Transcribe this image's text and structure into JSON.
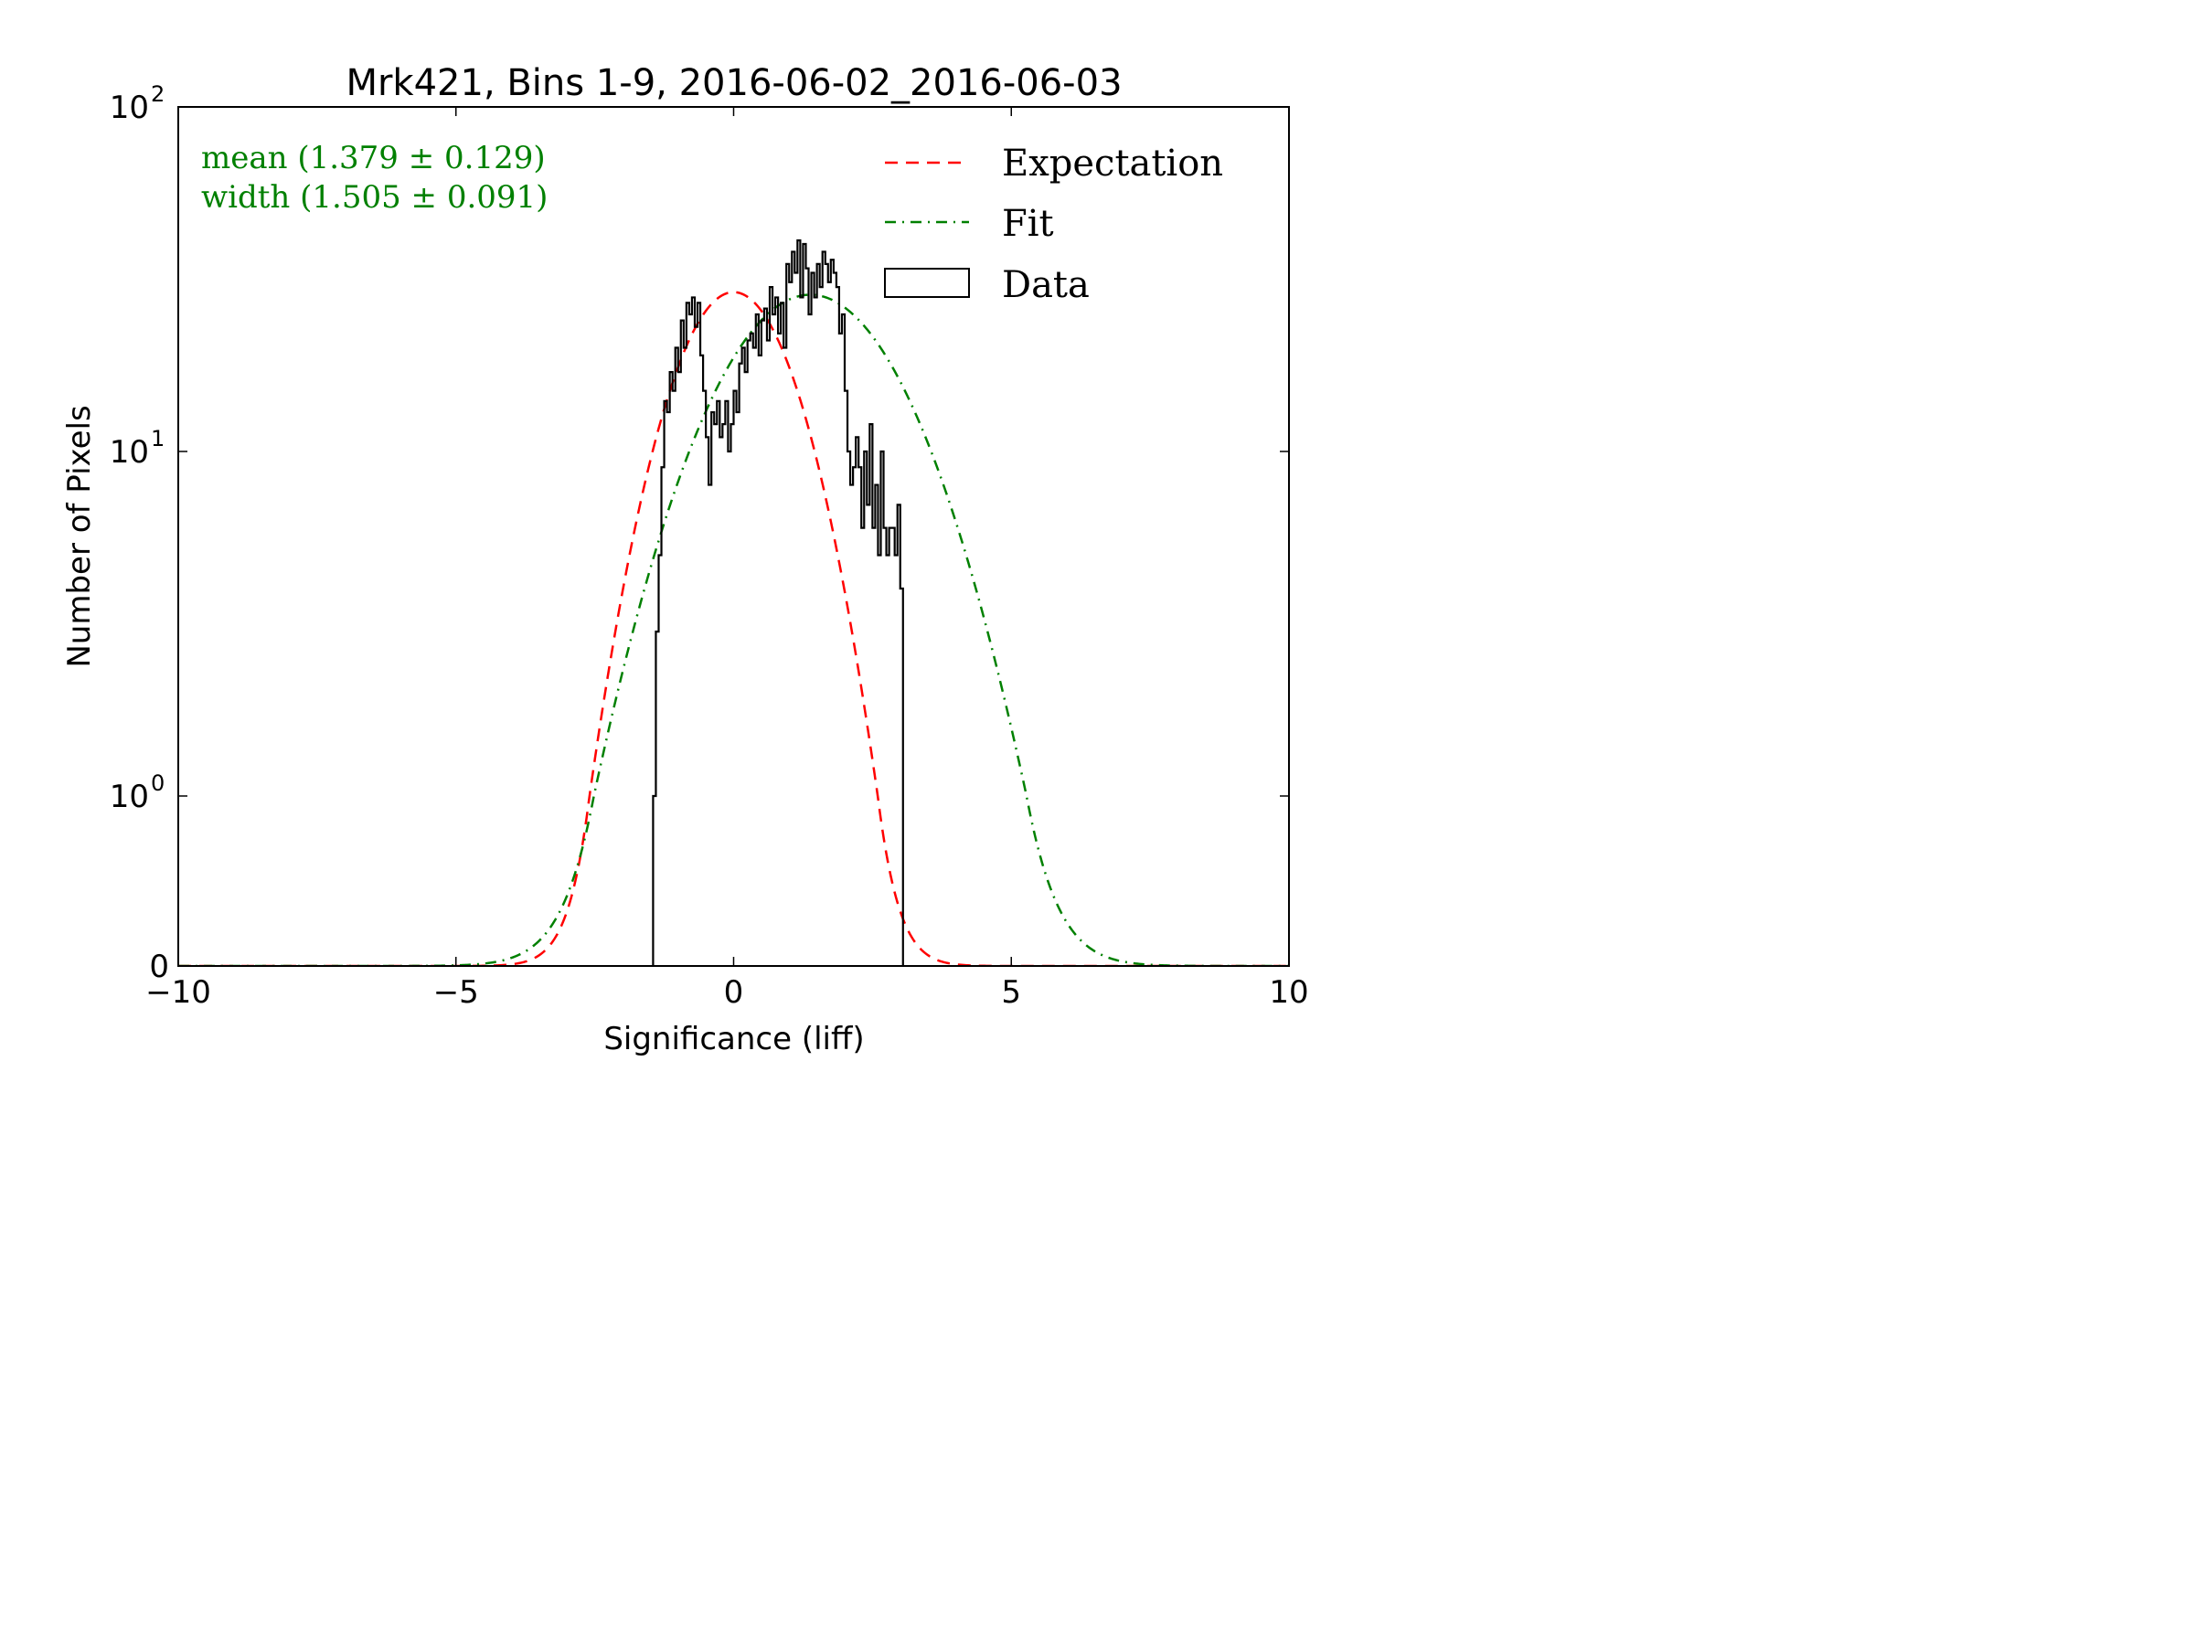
{
  "chart_data": {
    "type": "histogram",
    "title": "Mrk421, Bins 1-9, 2016-06-02_2016-06-03",
    "xlabel": "Significance (liff)",
    "ylabel": "Number of Pixels",
    "xlim": [
      -10,
      10
    ],
    "y_scale": "symlog",
    "x_ticks": [
      {
        "value": -10,
        "label": "−10"
      },
      {
        "value": -5,
        "label": "−5"
      },
      {
        "value": 0,
        "label": "0"
      },
      {
        "value": 5,
        "label": "5"
      },
      {
        "value": 10,
        "label": "10"
      }
    ],
    "y_ticks": [
      {
        "value": 0,
        "base": "0",
        "exp": ""
      },
      {
        "value": 1,
        "base": "10",
        "exp": "0"
      },
      {
        "value": 10,
        "base": "10",
        "exp": "1"
      },
      {
        "value": 100,
        "base": "10",
        "exp": "2"
      }
    ],
    "annotations": [
      {
        "text": "mean (1.379 ± 0.129)",
        "color": "#008000"
      },
      {
        "text": "width (1.505 ± 0.091)",
        "color": "#008000"
      }
    ],
    "legend": {
      "placement": "top-right",
      "entries": [
        {
          "label": "Expectation",
          "color": "#ff0000",
          "style": "dashed"
        },
        {
          "label": "Fit",
          "color": "#008000",
          "style": "dashdot"
        },
        {
          "label": "Data",
          "color": "#000000",
          "style": "patch"
        }
      ]
    },
    "series": [
      {
        "name": "Expectation",
        "kind": "gaussian",
        "mean": 0,
        "sigma": 1,
        "amplitude": 29,
        "color": "#ff0000"
      },
      {
        "name": "Fit",
        "kind": "gaussian",
        "mean": 1.379,
        "sigma": 1.505,
        "amplitude": 28.5,
        "color": "#008000"
      },
      {
        "name": "Data",
        "kind": "histogram",
        "color": "#000000",
        "bins": [
          [
            -1.45,
            1
          ],
          [
            -1.4,
            3
          ],
          [
            -1.35,
            5
          ],
          [
            -1.3,
            9
          ],
          [
            -1.25,
            14
          ],
          [
            -1.2,
            13
          ],
          [
            -1.15,
            17
          ],
          [
            -1.1,
            15
          ],
          [
            -1.05,
            20
          ],
          [
            -1.0,
            17
          ],
          [
            -0.95,
            24
          ],
          [
            -0.9,
            20
          ],
          [
            -0.85,
            27
          ],
          [
            -0.8,
            25
          ],
          [
            -0.75,
            28
          ],
          [
            -0.7,
            23
          ],
          [
            -0.65,
            27
          ],
          [
            -0.6,
            19
          ],
          [
            -0.55,
            15
          ],
          [
            -0.5,
            11
          ],
          [
            -0.45,
            8
          ],
          [
            -0.4,
            13
          ],
          [
            -0.35,
            12
          ],
          [
            -0.3,
            14
          ],
          [
            -0.25,
            11
          ],
          [
            -0.2,
            12
          ],
          [
            -0.15,
            14
          ],
          [
            -0.1,
            10
          ],
          [
            -0.05,
            12
          ],
          [
            0.0,
            15
          ],
          [
            0.05,
            13
          ],
          [
            0.1,
            18
          ],
          [
            0.15,
            20
          ],
          [
            0.2,
            17
          ],
          [
            0.25,
            21
          ],
          [
            0.3,
            22
          ],
          [
            0.35,
            20
          ],
          [
            0.4,
            25
          ],
          [
            0.45,
            19
          ],
          [
            0.5,
            24
          ],
          [
            0.55,
            26
          ],
          [
            0.6,
            21
          ],
          [
            0.65,
            30
          ],
          [
            0.7,
            25
          ],
          [
            0.75,
            28
          ],
          [
            0.8,
            22
          ],
          [
            0.85,
            27
          ],
          [
            0.9,
            20
          ],
          [
            0.95,
            35
          ],
          [
            1.0,
            31
          ],
          [
            1.05,
            38
          ],
          [
            1.1,
            33
          ],
          [
            1.15,
            41
          ],
          [
            1.2,
            28
          ],
          [
            1.25,
            40
          ],
          [
            1.3,
            34
          ],
          [
            1.35,
            25
          ],
          [
            1.4,
            33
          ],
          [
            1.45,
            28
          ],
          [
            1.5,
            35
          ],
          [
            1.55,
            30
          ],
          [
            1.6,
            38
          ],
          [
            1.65,
            35
          ],
          [
            1.7,
            31
          ],
          [
            1.75,
            36
          ],
          [
            1.8,
            33
          ],
          [
            1.85,
            30
          ],
          [
            1.9,
            22
          ],
          [
            1.95,
            25
          ],
          [
            2.0,
            15
          ],
          [
            2.05,
            10
          ],
          [
            2.1,
            8
          ],
          [
            2.15,
            9
          ],
          [
            2.2,
            11
          ],
          [
            2.25,
            9
          ],
          [
            2.3,
            6
          ],
          [
            2.35,
            10
          ],
          [
            2.4,
            7
          ],
          [
            2.45,
            12
          ],
          [
            2.5,
            6
          ],
          [
            2.55,
            8
          ],
          [
            2.6,
            5
          ],
          [
            2.65,
            10
          ],
          [
            2.7,
            6
          ],
          [
            2.75,
            5
          ],
          [
            2.8,
            6
          ],
          [
            2.85,
            6
          ],
          [
            2.9,
            5
          ],
          [
            2.95,
            7
          ],
          [
            3.0,
            4
          ]
        ],
        "bin_width": 0.05
      }
    ]
  }
}
